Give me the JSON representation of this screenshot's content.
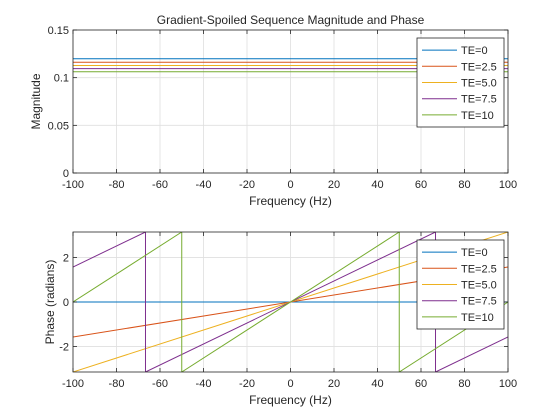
{
  "chart_data": [
    {
      "type": "line",
      "title": "Gradient-Spoiled Sequence Magnitude and Phase",
      "xlabel": "Frequency (Hz)",
      "ylabel": "Magnitude",
      "xlim": [
        -100,
        100
      ],
      "ylim": [
        0,
        0.15
      ],
      "xticks": [
        -100,
        -80,
        -60,
        -40,
        -20,
        0,
        20,
        40,
        60,
        80,
        100
      ],
      "xtick_labels": [
        "-100",
        "-80",
        "-60",
        "-40",
        "-20",
        "0",
        "20",
        "40",
        "60",
        "80",
        "100"
      ],
      "yticks": [
        0,
        0.05,
        0.1,
        0.15
      ],
      "ytick_labels": [
        "0",
        "0.05",
        "0.1",
        "0.15"
      ],
      "grid": true,
      "legend_position": "top-right",
      "series": [
        {
          "name": "TE=0",
          "color": "#0072BD",
          "x": [
            -100,
            100
          ],
          "y": [
            0.1198,
            0.1198
          ]
        },
        {
          "name": "TE=2.5",
          "color": "#D95319",
          "x": [
            -100,
            100
          ],
          "y": [
            0.1162,
            0.1162
          ]
        },
        {
          "name": "TE=5.0",
          "color": "#EDB120",
          "x": [
            -100,
            100
          ],
          "y": [
            0.1128,
            0.1128
          ]
        },
        {
          "name": "TE=7.5",
          "color": "#7E2F8E",
          "x": [
            -100,
            100
          ],
          "y": [
            0.1095,
            0.1095
          ]
        },
        {
          "name": "TE=10",
          "color": "#77AC30",
          "x": [
            -100,
            100
          ],
          "y": [
            0.1062,
            0.1062
          ]
        }
      ]
    },
    {
      "type": "line",
      "title": "",
      "xlabel": "Frequency (Hz)",
      "ylabel": "Phase (radians)",
      "xlim": [
        -100,
        100
      ],
      "ylim": [
        -3.1416,
        3.1416
      ],
      "xticks": [
        -100,
        -80,
        -60,
        -40,
        -20,
        0,
        20,
        40,
        60,
        80,
        100
      ],
      "xtick_labels": [
        "-100",
        "-80",
        "-60",
        "-40",
        "-20",
        "0",
        "20",
        "40",
        "60",
        "80",
        "100"
      ],
      "yticks": [
        -2,
        0,
        2
      ],
      "ytick_labels": [
        "-2",
        "0",
        "2"
      ],
      "grid": true,
      "legend_position": "top-right",
      "series": [
        {
          "name": "TE=0",
          "color": "#0072BD",
          "x": [
            -100,
            100
          ],
          "y": [
            0,
            0
          ]
        },
        {
          "name": "TE=2.5",
          "color": "#D95319",
          "x": [
            -100,
            100
          ],
          "y": [
            -1.5708,
            1.5708
          ]
        },
        {
          "name": "TE=5.0",
          "color": "#EDB120",
          "x": [
            -100,
            100
          ],
          "y": [
            -3.1416,
            3.1416
          ]
        },
        {
          "name": "TE=7.5",
          "color": "#7E2F8E",
          "x": [
            -100,
            -66.67,
            -66.67,
            66.67,
            66.67,
            100
          ],
          "y": [
            1.5708,
            3.1416,
            -3.1416,
            3.1416,
            -3.1416,
            -1.5708
          ]
        },
        {
          "name": "TE=10",
          "color": "#77AC30",
          "x": [
            -100,
            -50,
            -50,
            50,
            50,
            100
          ],
          "y": [
            0,
            3.1416,
            -3.1416,
            3.1416,
            -3.1416,
            0
          ]
        }
      ]
    }
  ]
}
